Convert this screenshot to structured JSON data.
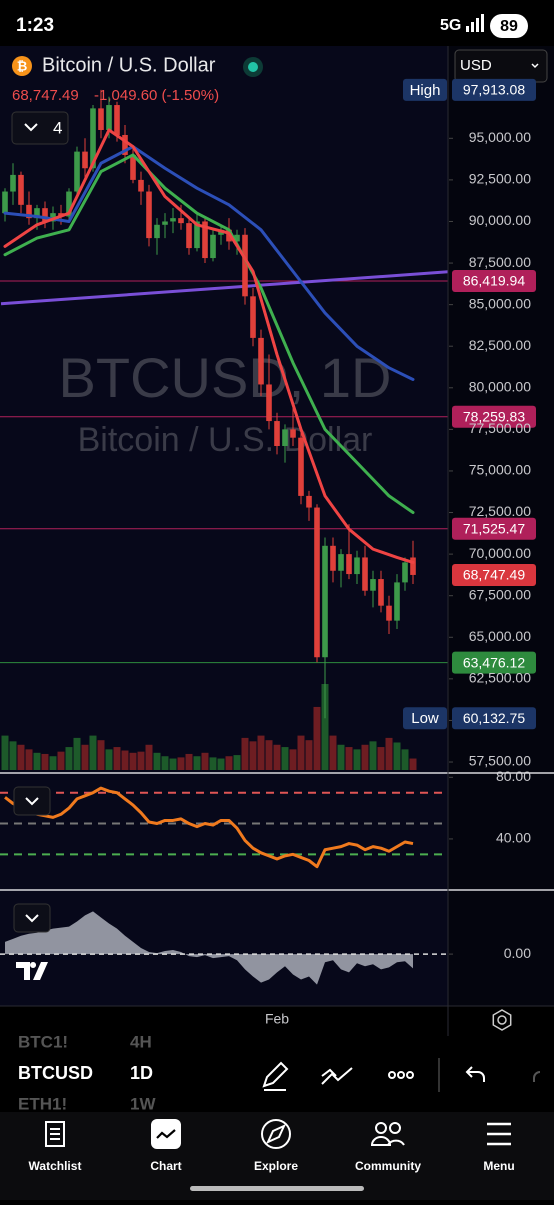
{
  "status": {
    "time": "1:23",
    "network": "5G",
    "battery": "89"
  },
  "header": {
    "title": "Bitcoin / U.S. Dollar",
    "price": "68,747.49",
    "change": "-1,049.60 (-1.50%)",
    "indicators_count": "4",
    "currency": "USD"
  },
  "watermark": {
    "symbol": "BTCUSD, 1D",
    "name": "Bitcoin / U.S. Dollar"
  },
  "toolbar": {
    "symbols": [
      "BTC1!",
      "BTCUSD",
      "ETH1!"
    ],
    "intervals": [
      "4H",
      "1D",
      "1W"
    ]
  },
  "nav": [
    "Watchlist",
    "Chart",
    "Explore",
    "Community",
    "Menu"
  ],
  "chart_data": [
    {
      "type": "candlestick",
      "categories": [
        null,
        null,
        null,
        null,
        null,
        null,
        null,
        null,
        null,
        null,
        null,
        null,
        null,
        null,
        null,
        null,
        null,
        null,
        null,
        null,
        null,
        null,
        null,
        null,
        null,
        null,
        null,
        null,
        null,
        null,
        null,
        null,
        null,
        null,
        "Feb",
        null,
        null,
        null,
        null,
        null,
        null,
        null,
        null,
        null,
        null,
        null,
        null,
        null,
        null,
        null,
        null,
        null
      ],
      "open": [
        90500,
        91800,
        92800,
        91000,
        90200,
        90800,
        90000,
        90500,
        90300,
        91800,
        94200,
        93200,
        96800,
        95500,
        97000,
        95200,
        94000,
        92500,
        91800,
        89000,
        89800,
        90000,
        90200,
        89900,
        88400,
        90000,
        87800,
        89200,
        89500,
        88800,
        89200,
        85500,
        83000,
        80200,
        78000,
        76500,
        77500,
        77000,
        73500,
        72800,
        63800,
        70500,
        69000,
        70000,
        68800,
        69800,
        67800,
        68500,
        66900,
        66000,
        68300,
        69797.09
      ],
      "high": [
        92000,
        93500,
        93000,
        91800,
        91000,
        91200,
        90900,
        91000,
        92000,
        94500,
        95000,
        97000,
        97913.08,
        97500,
        97200,
        95800,
        94600,
        93000,
        92200,
        90200,
        90500,
        90800,
        91000,
        90300,
        90500,
        90200,
        89500,
        89800,
        90200,
        89500,
        89600,
        86000,
        83500,
        82000,
        78500,
        77800,
        78800,
        77500,
        73800,
        73000,
        71000,
        71000,
        70300,
        71800,
        70200,
        70500,
        69000,
        69000,
        67500,
        68800,
        69800,
        70800
      ],
      "low": [
        90000,
        91000,
        90500,
        89800,
        89500,
        89600,
        89500,
        89800,
        90000,
        91500,
        92500,
        93000,
        95000,
        95000,
        94800,
        93500,
        92300,
        91000,
        88500,
        88000,
        89000,
        89300,
        89500,
        88000,
        88200,
        87500,
        87600,
        88600,
        88300,
        88000,
        85000,
        82500,
        79500,
        77500,
        76000,
        75500,
        76500,
        73000,
        72000,
        63500,
        60132.75,
        68300,
        68000,
        68500,
        68200,
        67500,
        66800,
        66500,
        65200,
        65500,
        67800,
        68200
      ],
      "close": [
        91800,
        92800,
        91000,
        90200,
        90800,
        90000,
        90500,
        90300,
        91800,
        94200,
        93200,
        96800,
        95500,
        97000,
        95200,
        94000,
        92500,
        91800,
        89000,
        89800,
        90000,
        90200,
        89900,
        88400,
        90000,
        87800,
        89200,
        89500,
        88800,
        89200,
        85500,
        83000,
        80200,
        78000,
        76500,
        77500,
        77000,
        73500,
        72800,
        63800,
        70500,
        69000,
        70000,
        68800,
        69800,
        67800,
        68500,
        66900,
        66000,
        68300,
        69500,
        68747.49
      ],
      "volume": [
        30,
        25,
        22,
        18,
        15,
        14,
        12,
        16,
        20,
        28,
        22,
        30,
        26,
        18,
        20,
        17,
        15,
        16,
        22,
        15,
        12,
        10,
        11,
        14,
        12,
        15,
        11,
        10,
        12,
        13,
        28,
        25,
        30,
        26,
        22,
        20,
        18,
        30,
        26,
        55,
        75,
        30,
        22,
        20,
        18,
        22,
        25,
        20,
        28,
        24,
        18,
        10
      ],
      "up_color": "#3d9a4a",
      "down_color": "#e0403a",
      "volume_up_color": "#1d5a2a",
      "volume_down_color": "#6e1d22",
      "ylim": [
        56900,
        100550
      ],
      "yticks": [
        {
          "value": 95000,
          "label": "95,000.00"
        },
        {
          "value": 92500,
          "label": "92,500.00"
        },
        {
          "value": 90000,
          "label": "90,000.00"
        },
        {
          "value": 87500,
          "label": "87,500.00"
        },
        {
          "value": 85000,
          "label": "85,000.00"
        },
        {
          "value": 82500,
          "label": "82,500.00"
        },
        {
          "value": 80000,
          "label": "80,000.00"
        },
        {
          "value": 77500,
          "label": "77,500.00"
        },
        {
          "value": 75000,
          "label": "75,000.00"
        },
        {
          "value": 72500,
          "label": "72,500.00"
        },
        {
          "value": 70000,
          "label": "70,000.00"
        },
        {
          "value": 67500,
          "label": "67,500.00"
        },
        {
          "value": 65000,
          "label": "65,000.00"
        },
        {
          "value": 62500,
          "label": "62,500.00"
        },
        {
          "value": 60000,
          "label": "60,000.00"
        },
        {
          "value": 57500,
          "label": "57,500.00"
        }
      ],
      "ma_lines": [
        {
          "color": "#2c4fb8",
          "x": [
            0,
            4,
            8,
            12,
            16,
            20,
            24,
            28,
            32,
            36,
            40,
            44,
            48,
            51
          ],
          "values": [
            90500,
            90300,
            90000,
            93500,
            94500,
            93200,
            92000,
            91000,
            89500,
            87000,
            84500,
            82500,
            81200,
            80500
          ]
        },
        {
          "color": "#3fb04f",
          "x": [
            0,
            4,
            8,
            12,
            16,
            20,
            24,
            28,
            32,
            36,
            40,
            44,
            48,
            51
          ],
          "values": [
            88000,
            89000,
            89500,
            93000,
            94000,
            92000,
            90500,
            89500,
            86000,
            81500,
            77500,
            75500,
            73500,
            72500
          ]
        },
        {
          "color": "#ef4444",
          "x": [
            0,
            4,
            8,
            11,
            13,
            16,
            20,
            24,
            28,
            31,
            34,
            37,
            40,
            43,
            46,
            49,
            51
          ],
          "values": [
            88500,
            89800,
            90500,
            93500,
            95500,
            94500,
            91500,
            89800,
            89300,
            87000,
            82000,
            77500,
            73500,
            71500,
            70300,
            69800,
            69500
          ]
        }
      ],
      "trend_line": {
        "color": "#7a4fd8",
        "x": [
          -0.5,
          55.5
        ],
        "values": [
          85050,
          86980
        ]
      },
      "price_lines": [
        {
          "value": 86419.94,
          "label": "86,419.94",
          "color": "#b0205a"
        },
        {
          "value": 78259.83,
          "label": "78,259.83",
          "color": "#b0205a"
        },
        {
          "value": 71525.47,
          "label": "71,525.47",
          "color": "#b0205a"
        },
        {
          "value": 63476.12,
          "label": "63,476.12",
          "color": "#2e8b3e"
        }
      ],
      "last_price": {
        "value": 68747.49,
        "label": "68,747.49",
        "color": "#d9363e"
      },
      "high_marker": {
        "text": "High",
        "value": 97913.08,
        "label": "97,913.08",
        "color": "#1c3566"
      },
      "low_marker": {
        "text": "Low",
        "value": 60132.75,
        "label": "60,132.75",
        "color": "#1c3566"
      }
    },
    {
      "type": "line",
      "color": "#f07a1e",
      "values": [
        67,
        63,
        60,
        58,
        56,
        55,
        54,
        56,
        60,
        66,
        68,
        70,
        73,
        71,
        70,
        66,
        62,
        57,
        51,
        50,
        52,
        52,
        53,
        50,
        48,
        50,
        49,
        52,
        52,
        47,
        39,
        34,
        31,
        29,
        27,
        29,
        30,
        28,
        26,
        22,
        33,
        34,
        35,
        37,
        36,
        33,
        35,
        34,
        32,
        35,
        38,
        37
      ],
      "ylim": [
        7.5,
        81.5
      ],
      "yticks": [
        {
          "value": 80,
          "label": "80.00"
        },
        {
          "value": 40,
          "label": "40.00"
        }
      ],
      "levels": [
        {
          "value": 70,
          "color": "#e05555"
        },
        {
          "value": 50,
          "color": "#777777"
        },
        {
          "value": 30,
          "color": "#4caf50"
        }
      ]
    },
    {
      "type": "area",
      "color": "#a9adb8",
      "values": [
        1200,
        1500,
        1800,
        2000,
        2100,
        2300,
        2500,
        2600,
        2700,
        3200,
        3800,
        4200,
        3600,
        3000,
        2500,
        1800,
        1200,
        600,
        200,
        100,
        300,
        400,
        200,
        -200,
        -300,
        -100,
        -400,
        -300,
        -200,
        -600,
        -1500,
        -2200,
        -2800,
        -2500,
        -1800,
        -1200,
        -2000,
        -2500,
        -2200,
        -3000,
        -800,
        -600,
        -1500,
        -1800,
        -900,
        -1200,
        -1000,
        -1500,
        -1300,
        -800,
        -700,
        -1400
      ],
      "ylim": [
        -5100,
        6100
      ],
      "yticks": [
        {
          "value": 0,
          "label": "0.00"
        }
      ]
    }
  ]
}
